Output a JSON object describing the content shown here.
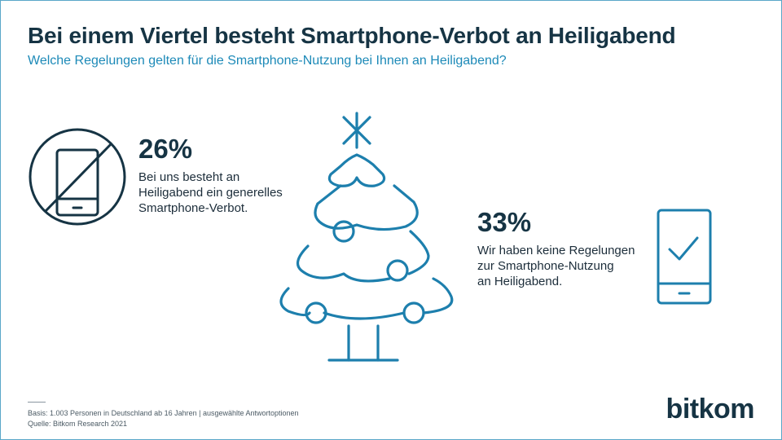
{
  "header": {
    "title": "Bei einem Viertel besteht Smartphone-Verbot an Heiligabend",
    "subtitle": "Welche Regelungen gelten für die Smartphone-Nutzung bei Ihnen an Heiligabend?"
  },
  "chart_data": {
    "type": "infographic",
    "title": "Bei einem Viertel besteht Smartphone-Verbot an Heiligabend",
    "subtitle": "Welche Regelungen gelten für die Smartphone-Nutzung bei Ihnen an Heiligabend?",
    "items": [
      {
        "value": 26,
        "value_label": "26%",
        "text": "Bei uns besteht an\nHeiligabend ein generelles\nSmartphone-Verbot.",
        "icon": "smartphone-ban-icon"
      },
      {
        "value": 33,
        "value_label": "33%",
        "text": "Wir haben keine Regelungen\nzur Smartphone-Nutzung\nan Heiligabend.",
        "icon": "smartphone-check-icon"
      }
    ]
  },
  "decoration": {
    "center_icon": "christmas-tree-icon"
  },
  "footer": {
    "basis": "Basis: 1.003 Personen in Deutschland ab 16 Jahren | ausgewählte Antwortoptionen",
    "source": "Quelle: Bitkom Research 2021",
    "logo": "bitkom"
  },
  "colors": {
    "accent": "#1d8ab8",
    "dark": "#163444",
    "frame": "#5aa7c9"
  }
}
